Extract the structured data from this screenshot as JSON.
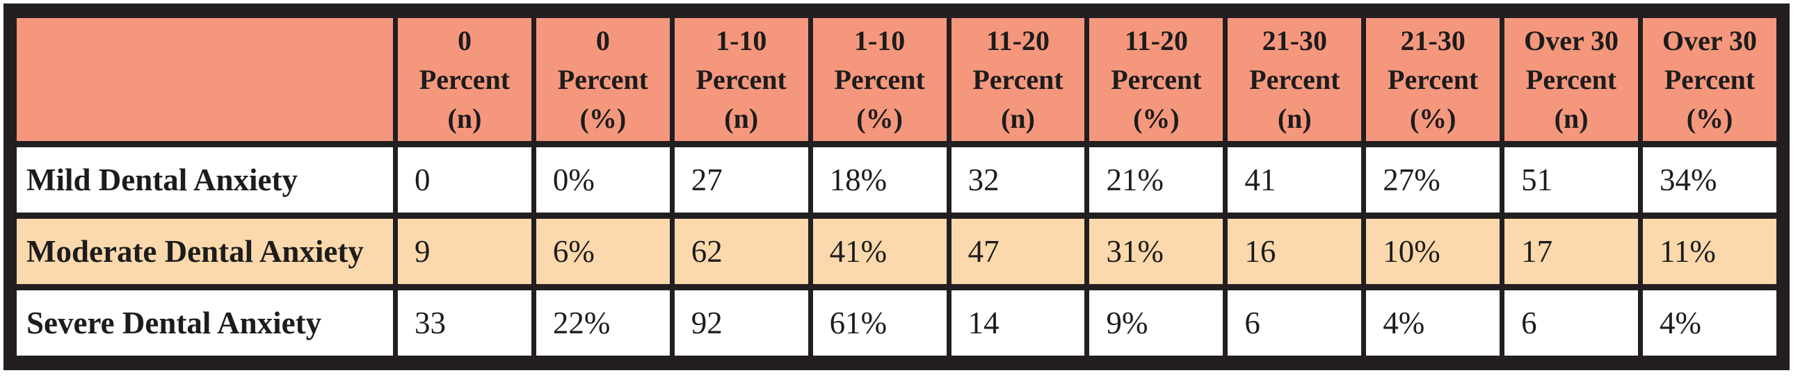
{
  "colors": {
    "header_bg": "#F5977D",
    "row_alt_bg": "#FBD9AC",
    "row_bg": "#FFFFFF",
    "border": "#231F20",
    "text": "#1C1C1C"
  },
  "table": {
    "corner_label": "",
    "header": [
      "0\nPercent\n(n)",
      "0\nPercent\n(%)",
      "1-10\nPercent\n(n)",
      "1-10\nPercent\n(%)",
      "11-20\nPercent\n(n)",
      "11-20\nPercent\n(%)",
      "21-30\nPercent\n(n)",
      "21-30\nPercent\n(%)",
      "Over 30\nPercent\n(n)",
      "Over 30\nPercent\n(%)"
    ],
    "rows": [
      {
        "label": "Mild Dental Anxiety",
        "values": [
          "0",
          "0%",
          "27",
          "18%",
          "32",
          "21%",
          "41",
          "27%",
          "51",
          "34%"
        ]
      },
      {
        "label": "Moderate Dental Anxiety",
        "values": [
          "9",
          "6%",
          "62",
          "41%",
          "47",
          "31%",
          "16",
          "10%",
          "17",
          "11%"
        ]
      },
      {
        "label": "Severe Dental Anxiety",
        "values": [
          "33",
          "22%",
          "92",
          "61%",
          "14",
          "9%",
          "6",
          "4%",
          "6",
          "4%"
        ]
      }
    ]
  },
  "chart_data": {
    "type": "table",
    "title": "",
    "columns": [
      "",
      "0 Percent (n)",
      "0 Percent (%)",
      "1-10 Percent (n)",
      "1-10 Percent (%)",
      "11-20 Percent (n)",
      "11-20 Percent (%)",
      "21-30 Percent (n)",
      "21-30 Percent (%)",
      "Over 30 Percent (n)",
      "Over 30 Percent (%)"
    ],
    "rows": [
      [
        "Mild Dental Anxiety",
        "0",
        "0%",
        "27",
        "18%",
        "32",
        "21%",
        "41",
        "27%",
        "51",
        "34%"
      ],
      [
        "Moderate Dental Anxiety",
        "9",
        "6%",
        "62",
        "41%",
        "47",
        "31%",
        "16",
        "10%",
        "17",
        "11%"
      ],
      [
        "Severe Dental Anxiety",
        "33",
        "22%",
        "92",
        "61%",
        "14",
        "9%",
        "6",
        "4%",
        "6",
        "4%"
      ]
    ]
  }
}
